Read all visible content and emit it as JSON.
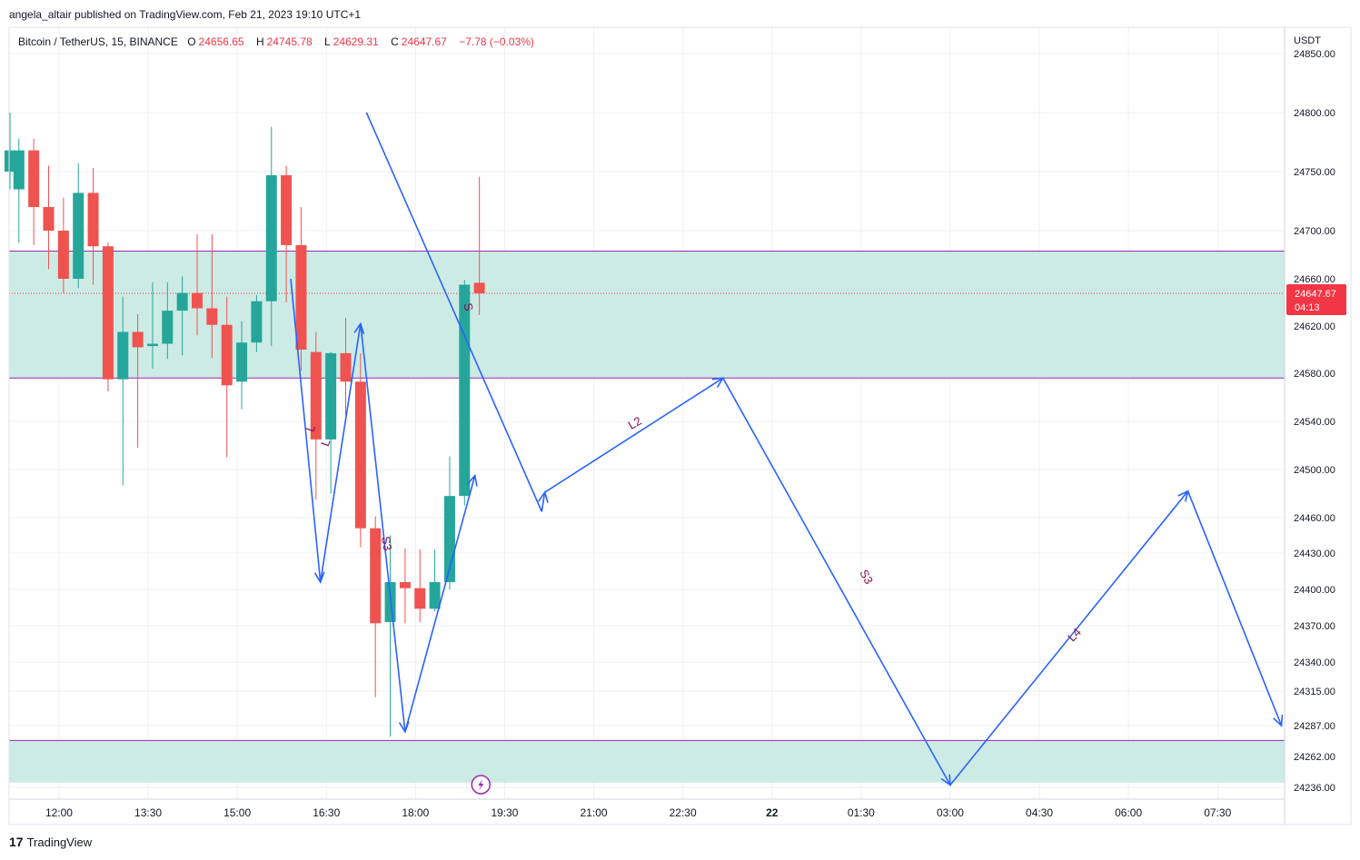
{
  "header": {
    "publisher_line": "angela_altair published on TradingView.com, Feb 21, 2023 19:10 UTC+1"
  },
  "legend": {
    "symbol": "Bitcoin / TetherUS, 15, BINANCE",
    "o_label": "O",
    "o_value": "24656.65",
    "h_label": "H",
    "h_value": "24745.78",
    "l_label": "L",
    "l_value": "24629.31",
    "c_label": "C",
    "c_value": "24647.67",
    "change": "−7.78 (−0.03%)"
  },
  "footer": {
    "logo_mark": "17",
    "brand": "TradingView"
  },
  "colors": {
    "up": "#26a69a",
    "down": "#ef5350",
    "zone_fill": "#cdebe5",
    "zone_line": "#9c27b0",
    "drawing": "#2962ff",
    "label": "#880e4f",
    "price_tag": "#f23645",
    "grid": "#eef0f4"
  },
  "chart_data": {
    "type": "candlestick",
    "symbol": "Bitcoin / TetherUS",
    "interval": "15",
    "exchange": "BINANCE",
    "currency": "USDT",
    "x_ticks": [
      "12:00",
      "13:30",
      "15:00",
      "16:30",
      "18:00",
      "19:30",
      "21:00",
      "22:30",
      "22",
      "01:30",
      "03:00",
      "04:30",
      "06:00",
      "07:30"
    ],
    "x_tick_index": [
      3,
      9,
      15,
      21,
      27,
      33,
      39,
      45,
      51,
      57,
      63,
      69,
      75,
      81
    ],
    "y_ticks": [
      24236,
      24262,
      24287,
      24315,
      24340,
      24370,
      24400,
      24430,
      24460,
      24500,
      24540,
      24580,
      24620,
      24660,
      24700,
      24750,
      24800,
      24850
    ],
    "y_tick_labels": [
      "24236.00",
      "24262.00",
      "24287.00",
      "24315.00",
      "24340.00",
      "24370.00",
      "24400.00",
      "24430.00",
      "24460.00",
      "24500.00",
      "24540.00",
      "24580.00",
      "24620.00",
      "24660.00",
      "24700.00",
      "24750.00",
      "24800.00",
      "24850.00"
    ],
    "last_price": {
      "value": 24647.67,
      "label": "24647.67",
      "countdown": "04:13"
    },
    "candles": [
      {
        "i": -0.3,
        "o": 24750,
        "h": 24800,
        "l": 24735,
        "c": 24768
      },
      {
        "i": 0.3,
        "o": 24735,
        "h": 24778,
        "l": 24690,
        "c": 24768
      },
      {
        "i": 1.3,
        "o": 24768,
        "h": 24778,
        "l": 24688,
        "c": 24720
      },
      {
        "i": 2.3,
        "o": 24720,
        "h": 24755,
        "l": 24668,
        "c": 24700
      },
      {
        "i": 3.3,
        "o": 24700,
        "h": 24728,
        "l": 24648,
        "c": 24660
      },
      {
        "i": 4.3,
        "o": 24660,
        "h": 24757,
        "l": 24652,
        "c": 24732
      },
      {
        "i": 5.3,
        "o": 24732,
        "h": 24753,
        "l": 24655,
        "c": 24687
      },
      {
        "i": 6.3,
        "o": 24687,
        "h": 24690,
        "l": 24565,
        "c": 24575
      },
      {
        "i": 7.3,
        "o": 24575,
        "h": 24645,
        "l": 24487,
        "c": 24615
      },
      {
        "i": 8.3,
        "o": 24615,
        "h": 24630,
        "l": 24518,
        "c": 24602
      },
      {
        "i": 9.3,
        "o": 24603,
        "h": 24657,
        "l": 24584,
        "c": 24605
      },
      {
        "i": 10.3,
        "o": 24605,
        "h": 24657,
        "l": 24592,
        "c": 24633
      },
      {
        "i": 11.3,
        "o": 24633,
        "h": 24662,
        "l": 24595,
        "c": 24648
      },
      {
        "i": 12.3,
        "o": 24648,
        "h": 24697,
        "l": 24612,
        "c": 24635
      },
      {
        "i": 13.3,
        "o": 24635,
        "h": 24697,
        "l": 24593,
        "c": 24621
      },
      {
        "i": 14.3,
        "o": 24621,
        "h": 24645,
        "l": 24510,
        "c": 24570
      },
      {
        "i": 15.3,
        "o": 24573,
        "h": 24624,
        "l": 24550,
        "c": 24606
      },
      {
        "i": 16.3,
        "o": 24606,
        "h": 24646,
        "l": 24598,
        "c": 24641
      },
      {
        "i": 17.3,
        "o": 24641,
        "h": 24788,
        "l": 24603,
        "c": 24747
      },
      {
        "i": 18.3,
        "o": 24747,
        "h": 24755,
        "l": 24640,
        "c": 24688
      },
      {
        "i": 19.3,
        "o": 24688,
        "h": 24720,
        "l": 24582,
        "c": 24600
      },
      {
        "i": 20.3,
        "o": 24598,
        "h": 24615,
        "l": 24475,
        "c": 24525
      },
      {
        "i": 21.3,
        "o": 24525,
        "h": 24598,
        "l": 24480,
        "c": 24597
      },
      {
        "i": 22.3,
        "o": 24597,
        "h": 24627,
        "l": 24545,
        "c": 24573
      },
      {
        "i": 23.3,
        "o": 24573,
        "h": 24597,
        "l": 24435,
        "c": 24451
      },
      {
        "i": 24.3,
        "o": 24451,
        "h": 24461,
        "l": 24310,
        "c": 24372
      },
      {
        "i": 25.3,
        "o": 24373,
        "h": 24445,
        "l": 24278,
        "c": 24406
      },
      {
        "i": 26.3,
        "o": 24406,
        "h": 24434,
        "l": 24372,
        "c": 24401
      },
      {
        "i": 27.3,
        "o": 24401,
        "h": 24433,
        "l": 24373,
        "c": 24384
      },
      {
        "i": 28.3,
        "o": 24384,
        "h": 24433,
        "l": 24382,
        "c": 24406
      },
      {
        "i": 29.3,
        "o": 24406,
        "h": 24511,
        "l": 24400,
        "c": 24478
      },
      {
        "i": 30.3,
        "o": 24478,
        "h": 24659,
        "l": 24470,
        "c": 24655
      },
      {
        "i": 31.3,
        "o": 24656.65,
        "h": 24745.78,
        "l": 24629.31,
        "c": 24647.67
      }
    ],
    "zones": [
      {
        "name": "upper",
        "from": 24576,
        "to": 24683
      },
      {
        "name": "lower",
        "from": 24240,
        "to": 24275
      }
    ],
    "path_points": [
      {
        "i": 23.7,
        "v": 24800
      },
      {
        "i": 35.5,
        "v": 24465
      },
      {
        "i": 35.7,
        "v": 24481
      },
      {
        "i": 47.7,
        "v": 24576
      },
      {
        "i": 63.0,
        "v": 24238
      },
      {
        "i": 79.0,
        "v": 24482
      },
      {
        "i": 85.3,
        "v": 24287
      }
    ],
    "path_labels": [
      {
        "text": "L2",
        "i": 41.8,
        "v": 24538,
        "rot": -30
      },
      {
        "text": "S3",
        "i": 57.3,
        "v": 24410,
        "rot": 62
      },
      {
        "text": "L4",
        "i": 71.4,
        "v": 24362,
        "rot": -46
      }
    ],
    "past_polyline": [
      {
        "i": 18.6,
        "v": 24660
      },
      {
        "i": 20.6,
        "v": 24406
      },
      {
        "i": 23.3,
        "v": 24622
      },
      {
        "i": 26.3,
        "v": 24282
      },
      {
        "i": 31.0,
        "v": 24495
      }
    ],
    "past_labels": [
      {
        "text": "L",
        "i": 20.0,
        "v": 24534,
        "rot": -70
      },
      {
        "text": "L",
        "i": 21.0,
        "v": 24522,
        "rot": -70
      },
      {
        "text": "S3",
        "i": 25.0,
        "v": 24438,
        "rot": 80
      },
      {
        "text": "S",
        "i": 30.5,
        "v": 24636,
        "rot": 80
      }
    ]
  }
}
